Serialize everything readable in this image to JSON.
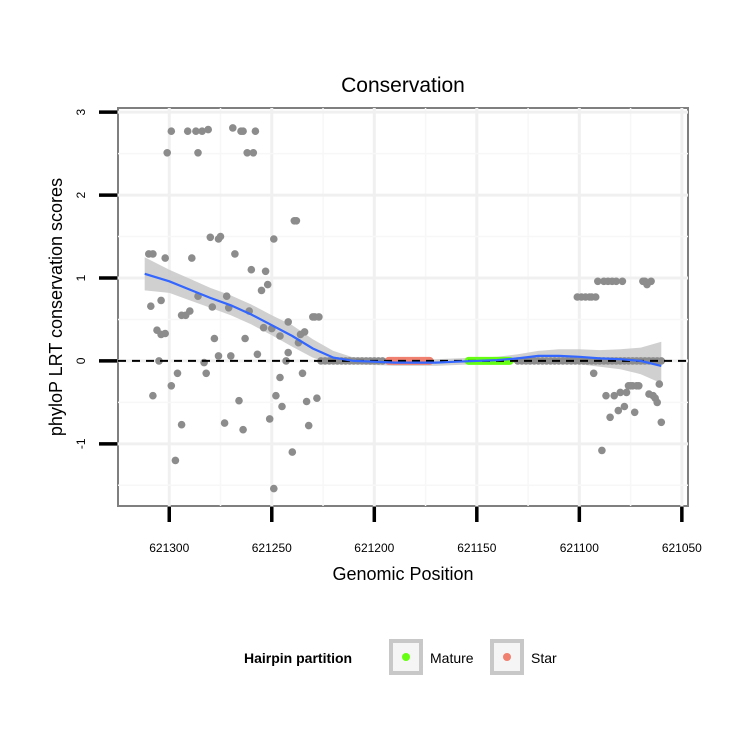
{
  "chart_data": {
    "type": "scatter",
    "title": "Conservation",
    "xlabel": "Genomic Position",
    "ylabel": "phyloP LRT conservation scores",
    "x_reversed": true,
    "xlim": [
      621325,
      621047
    ],
    "ylim": [
      -1.75,
      3.05
    ],
    "x_ticks": [
      621300,
      621250,
      621200,
      621150,
      621100,
      621050
    ],
    "y_ticks": [
      -1,
      0,
      1,
      2,
      3
    ],
    "reference_line": {
      "y": 0,
      "style": "dashed",
      "color": "#000000"
    },
    "grid": true,
    "colors": {
      "points": "#8c8c8c",
      "smooth_line": "#3366ff",
      "ribbon": "#c8c8c8",
      "mature": "#66ff11",
      "star": "#f08070"
    },
    "legend": {
      "title": "Hairpin partition",
      "position": "bottom",
      "entries": [
        {
          "label": "Mature",
          "color": "#66ff11"
        },
        {
          "label": "Star",
          "color": "#f08070"
        }
      ]
    },
    "partitions": [
      {
        "name": "Star",
        "x_start": 621193,
        "x_end": 621173
      },
      {
        "name": "Mature",
        "x_start": 621154,
        "x_end": 621134
      }
    ],
    "points": [
      [
        621310,
        1.29
      ],
      [
        621308,
        1.29
      ],
      [
        621309,
        0.66
      ],
      [
        621308,
        -0.42
      ],
      [
        621306,
        0.37
      ],
      [
        621304,
        0.32
      ],
      [
        621304,
        0.73
      ],
      [
        621305,
        0
      ],
      [
        621302,
        1.24
      ],
      [
        621302,
        0.33
      ],
      [
        621301,
        2.51
      ],
      [
        621299,
        2.77
      ],
      [
        621299,
        -0.3
      ],
      [
        621297,
        -1.2
      ],
      [
        621296,
        -0.15
      ],
      [
        621294,
        0.55
      ],
      [
        621294,
        -0.77
      ],
      [
        621292,
        0.55
      ],
      [
        621291,
        2.77
      ],
      [
        621290,
        0.6
      ],
      [
        621289,
        1.24
      ],
      [
        621287,
        2.77
      ],
      [
        621286,
        0.78
      ],
      [
        621286,
        2.51
      ],
      [
        621284,
        2.77
      ],
      [
        621283,
        -0.02
      ],
      [
        621282,
        -0.15
      ],
      [
        621281,
        2.79
      ],
      [
        621280,
        1.49
      ],
      [
        621279,
        0.65
      ],
      [
        621278,
        0.27
      ],
      [
        621276,
        1.47
      ],
      [
        621276,
        0.06
      ],
      [
        621275,
        1.5
      ],
      [
        621273,
        -0.75
      ],
      [
        621272,
        0.78
      ],
      [
        621271,
        0.64
      ],
      [
        621270,
        0.06
      ],
      [
        621269,
        2.81
      ],
      [
        621268,
        1.29
      ],
      [
        621266,
        -0.48
      ],
      [
        621265,
        2.77
      ],
      [
        621264,
        2.77
      ],
      [
        621264,
        -0.83
      ],
      [
        621263,
        0.27
      ],
      [
        621262,
        2.51
      ],
      [
        621261,
        0.6
      ],
      [
        621260,
        1.1
      ],
      [
        621259,
        2.51
      ],
      [
        621258,
        2.77
      ],
      [
        621257,
        0.08
      ],
      [
        621255,
        0.85
      ],
      [
        621254,
        0.4
      ],
      [
        621253,
        1.08
      ],
      [
        621252,
        0.92
      ],
      [
        621251,
        -0.7
      ],
      [
        621250,
        0.39
      ],
      [
        621249,
        1.47
      ],
      [
        621249,
        -1.54
      ],
      [
        621248,
        -0.42
      ],
      [
        621246,
        -0.2
      ],
      [
        621246,
        0.3
      ],
      [
        621245,
        -0.55
      ],
      [
        621243,
        0
      ],
      [
        621242,
        0.47
      ],
      [
        621242,
        0.1
      ],
      [
        621240,
        -1.1
      ],
      [
        621239,
        1.69
      ],
      [
        621238,
        1.69
      ],
      [
        621237,
        0.22
      ],
      [
        621236,
        0.32
      ],
      [
        621235,
        -0.15
      ],
      [
        621234,
        0.35
      ],
      [
        621233,
        -0.49
      ],
      [
        621232,
        -0.78
      ],
      [
        621230,
        0.53
      ],
      [
        621229,
        0.53
      ],
      [
        621228,
        -0.45
      ],
      [
        621227,
        0.53
      ],
      [
        621226,
        0
      ],
      [
        621224,
        0
      ],
      [
        621222,
        0
      ],
      [
        621220,
        0
      ],
      [
        621218,
        0
      ],
      [
        621216,
        0
      ],
      [
        621214,
        0
      ],
      [
        621212,
        0
      ],
      [
        621210,
        0
      ],
      [
        621208,
        0
      ],
      [
        621206,
        0
      ],
      [
        621204,
        0
      ],
      [
        621202,
        0
      ],
      [
        621200,
        0
      ],
      [
        621198,
        0
      ],
      [
        621196,
        0
      ],
      [
        621130,
        0
      ],
      [
        621128,
        0
      ],
      [
        621126,
        0
      ],
      [
        621124,
        0
      ],
      [
        621122,
        0
      ],
      [
        621120,
        0
      ],
      [
        621118,
        0
      ],
      [
        621116,
        0
      ],
      [
        621114,
        0
      ],
      [
        621112,
        0
      ],
      [
        621110,
        0
      ],
      [
        621108,
        0
      ],
      [
        621106,
        0
      ],
      [
        621104,
        0
      ],
      [
        621102,
        0
      ],
      [
        621100,
        0
      ],
      [
        621098,
        0
      ],
      [
        621096,
        0
      ],
      [
        621094,
        0
      ],
      [
        621092,
        0
      ],
      [
        621090,
        0
      ],
      [
        621088,
        0
      ],
      [
        621086,
        0
      ],
      [
        621084,
        0
      ],
      [
        621082,
        0
      ],
      [
        621080,
        0
      ],
      [
        621078,
        0
      ],
      [
        621076,
        0
      ],
      [
        621074,
        0
      ],
      [
        621072,
        0
      ],
      [
        621070,
        0
      ],
      [
        621068,
        0
      ],
      [
        621066,
        0
      ],
      [
        621064,
        0
      ],
      [
        621062,
        0
      ],
      [
        621060,
        0
      ],
      [
        621101,
        0.77
      ],
      [
        621099,
        0.77
      ],
      [
        621097,
        0.77
      ],
      [
        621095,
        0.77
      ],
      [
        621094,
        0.77
      ],
      [
        621093,
        -0.15
      ],
      [
        621092,
        0.77
      ],
      [
        621091,
        0.96
      ],
      [
        621089,
        -1.08
      ],
      [
        621088,
        0.96
      ],
      [
        621087,
        -0.42
      ],
      [
        621086,
        0.96
      ],
      [
        621085,
        -0.68
      ],
      [
        621084,
        0.96
      ],
      [
        621083,
        -0.42
      ],
      [
        621082,
        0.96
      ],
      [
        621081,
        -0.6
      ],
      [
        621080,
        -0.38
      ],
      [
        621079,
        0.96
      ],
      [
        621078,
        -0.55
      ],
      [
        621077,
        -0.38
      ],
      [
        621076,
        -0.3
      ],
      [
        621075,
        -0.3
      ],
      [
        621074,
        -0.3
      ],
      [
        621073,
        -0.62
      ],
      [
        621072,
        -0.3
      ],
      [
        621071,
        -0.3
      ],
      [
        621069,
        0.96
      ],
      [
        621068,
        0.96
      ],
      [
        621067,
        0.92
      ],
      [
        621066,
        -0.4
      ],
      [
        621065,
        0.96
      ],
      [
        621064,
        -0.42
      ],
      [
        621063,
        -0.45
      ],
      [
        621062,
        -0.5
      ],
      [
        621061,
        -0.28
      ],
      [
        621060,
        -0.74
      ]
    ],
    "smooth": {
      "x": [
        621312,
        621300,
        621290,
        621280,
        621270,
        621260,
        621250,
        621240,
        621230,
        621220,
        621210,
        621200,
        621190,
        621180,
        621170,
        621160,
        621150,
        621140,
        621130,
        621120,
        621110,
        621100,
        621090,
        621080,
        621070,
        621060
      ],
      "y": [
        1.05,
        0.96,
        0.86,
        0.76,
        0.67,
        0.56,
        0.43,
        0.3,
        0.15,
        0.04,
        0.0,
        -0.01,
        -0.02,
        -0.02,
        -0.02,
        -0.01,
        0.0,
        0.01,
        0.03,
        0.06,
        0.06,
        0.05,
        0.03,
        0.02,
        0.0,
        -0.06
      ],
      "lower": [
        0.85,
        0.82,
        0.73,
        0.64,
        0.55,
        0.44,
        0.31,
        0.17,
        0.04,
        -0.04,
        -0.04,
        -0.05,
        -0.06,
        -0.06,
        -0.06,
        -0.05,
        -0.04,
        -0.03,
        -0.02,
        0.0,
        -0.02,
        -0.04,
        -0.07,
        -0.1,
        -0.16,
        -0.27
      ],
      "upper": [
        1.25,
        1.1,
        0.99,
        0.88,
        0.79,
        0.68,
        0.55,
        0.43,
        0.26,
        0.12,
        0.04,
        0.03,
        0.02,
        0.02,
        0.02,
        0.03,
        0.04,
        0.05,
        0.08,
        0.12,
        0.14,
        0.14,
        0.13,
        0.14,
        0.16,
        0.23
      ]
    }
  }
}
